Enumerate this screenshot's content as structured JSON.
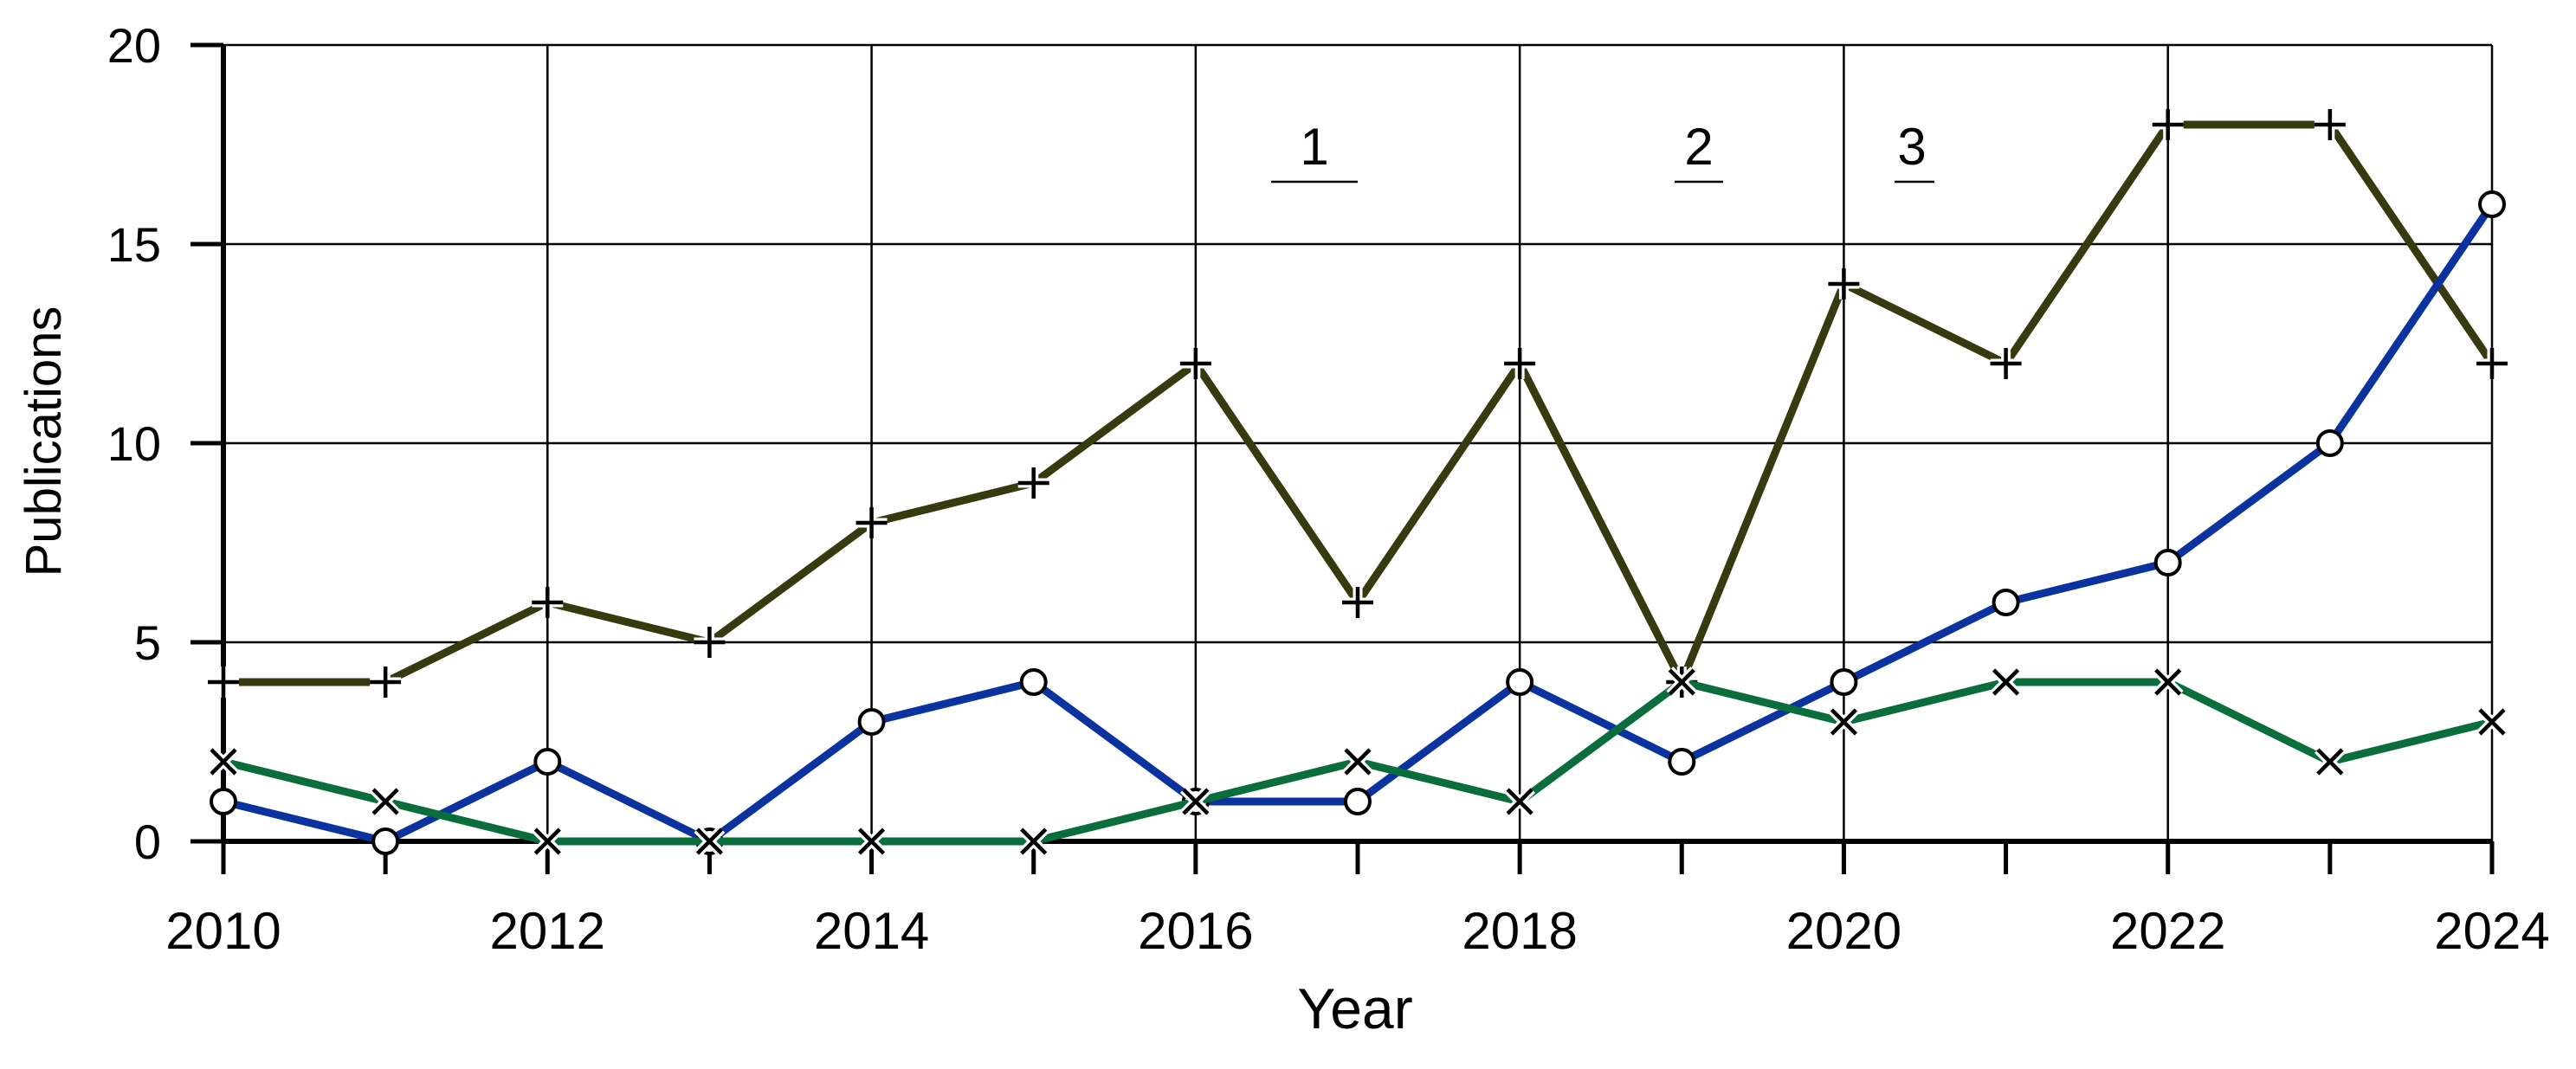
{
  "chart_data": {
    "type": "line",
    "xlabel": "Year",
    "ylabel": "Publications",
    "xlim": [
      2010,
      2024
    ],
    "ylim": [
      0,
      20
    ],
    "x_ticks": [
      2010,
      2012,
      2014,
      2016,
      2018,
      2020,
      2022,
      2024
    ],
    "y_ticks": [
      0,
      5,
      10,
      15,
      20
    ],
    "grid": true,
    "x": [
      2010,
      2011,
      2012,
      2013,
      2014,
      2015,
      2016,
      2017,
      2018,
      2019,
      2020,
      2021,
      2022,
      2023,
      2024
    ],
    "series": [
      {
        "name": "1",
        "marker": "plus",
        "color": "#363a0e",
        "values": [
          4,
          4,
          6,
          5,
          8,
          9,
          12,
          6,
          12,
          4,
          14,
          12,
          18,
          18,
          12
        ]
      },
      {
        "name": "2",
        "marker": "circle",
        "color": "#0a33a0",
        "values": [
          1,
          0,
          2,
          0,
          3,
          4,
          1,
          1,
          4,
          2,
          4,
          6,
          7,
          10,
          16
        ]
      },
      {
        "name": "3",
        "marker": "cross",
        "color": "#0a6e3c",
        "values": [
          2,
          1,
          0,
          0,
          0,
          0,
          1,
          2,
          1,
          4,
          3,
          4,
          4,
          2,
          3
        ]
      }
    ]
  }
}
